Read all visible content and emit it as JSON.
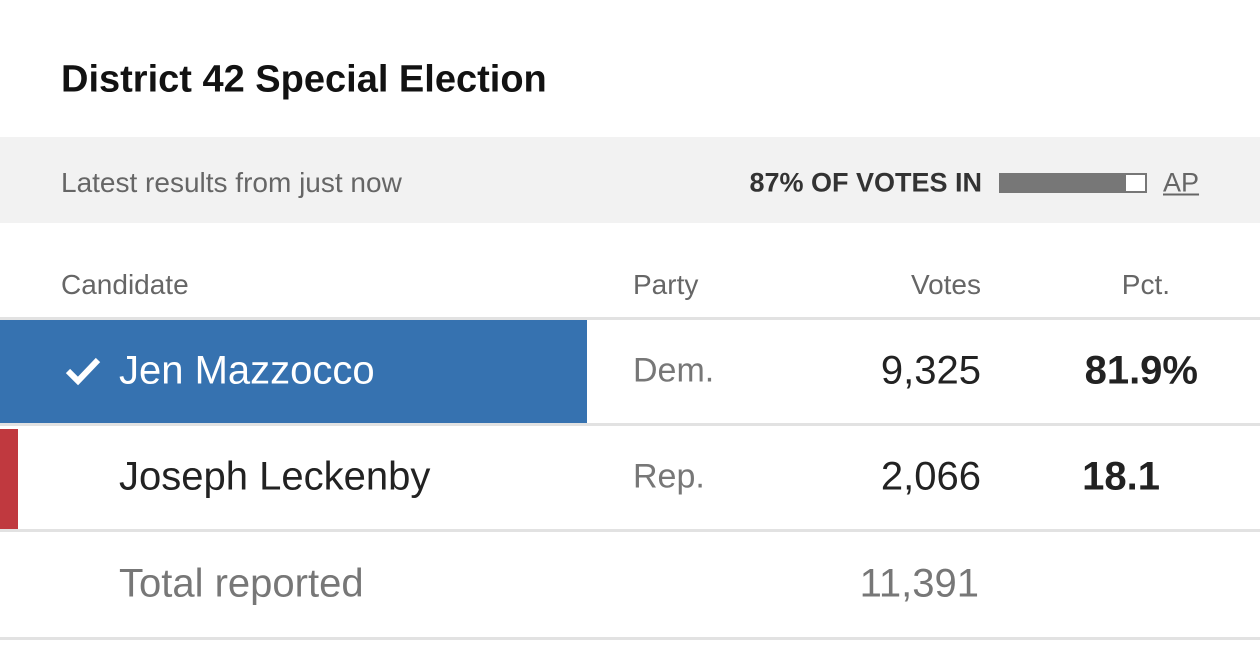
{
  "title": "District 42 Special Election",
  "status": "Latest results from just now",
  "reporting": {
    "value": 87,
    "label": "87% OF VOTES IN"
  },
  "source": "AP",
  "table": {
    "columns": [
      "Candidate",
      "Party",
      "Votes",
      "Pct."
    ],
    "rows": [
      {
        "candidate": "Jen Mazzocco",
        "party": "Dem.",
        "votes": "9,325",
        "pct": "81.9%",
        "winner": true,
        "color": "#3672b0"
      },
      {
        "candidate": "Joseph Leckenby",
        "party": "Rep.",
        "votes": "2,066",
        "pct": "18.1",
        "winner": false,
        "color": "#c0393f"
      }
    ],
    "total": {
      "label": "Total reported",
      "votes": "11,391"
    }
  }
}
